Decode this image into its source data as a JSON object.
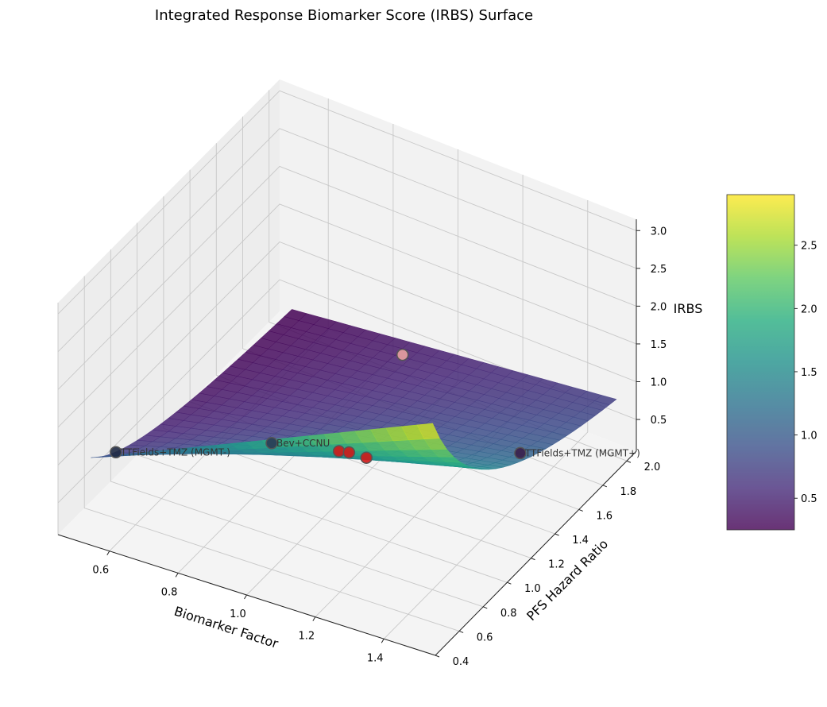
{
  "chart_data": {
    "type": "surface3d",
    "title": "Integrated Response Biomarker Score (IRBS) Surface",
    "xlabel": "Biomarker Factor",
    "ylabel": "PFS Hazard Ratio",
    "zlabel": "IRBS",
    "x_ticks": [
      "0.6",
      "0.8",
      "1.0",
      "1.2",
      "1.4"
    ],
    "y_ticks": [
      "0.4",
      "0.6",
      "0.8",
      "1.0",
      "1.2",
      "1.4",
      "1.6",
      "1.8",
      "2.0"
    ],
    "z_ticks": [
      "0.5",
      "1.0",
      "1.5",
      "2.0",
      "2.5",
      "3.0"
    ],
    "xlim": [
      0.45,
      1.55
    ],
    "ylim": [
      0.4,
      2.08
    ],
    "zlim": [
      0.08,
      3.15
    ],
    "surface": {
      "colormap": "viridis",
      "alpha": 0.8,
      "formula": "IRBS = Biomarker Factor / PFS Hazard Ratio",
      "x_range": [
        0.5,
        1.5
      ],
      "y_range": [
        0.52,
        2.05
      ]
    },
    "colorbar": {
      "ticks": [
        "0.5",
        "1.0",
        "1.5",
        "2.0",
        "2.5"
      ],
      "range": [
        0.25,
        2.9
      ]
    },
    "points": [
      {
        "label": "TTFields+TMZ (MGMT-)",
        "x": 0.5,
        "y": 0.71,
        "z": 0.7,
        "color": "#1f2a44"
      },
      {
        "label": "TTFields+TMZ (MGMT+)",
        "x": 1.46,
        "y": 1.36,
        "z": 1.07,
        "color": "#3a1f4a"
      },
      {
        "label": "Bev+CCNU",
        "x": 0.85,
        "y": 1.0,
        "z": 0.85,
        "color": "#2a3a55"
      },
      {
        "label": "",
        "x": 1.05,
        "y": 1.0,
        "z": 1.05,
        "color": "#d01818"
      },
      {
        "label": "",
        "x": 1.08,
        "y": 1.0,
        "z": 1.08,
        "color": "#d01818"
      },
      {
        "label": "",
        "x": 1.15,
        "y": 0.95,
        "z": 1.2,
        "color": "#d01818"
      },
      {
        "label": "",
        "x": 0.88,
        "y": 1.95,
        "z": 0.45,
        "color": "#e8a0a0"
      }
    ]
  }
}
